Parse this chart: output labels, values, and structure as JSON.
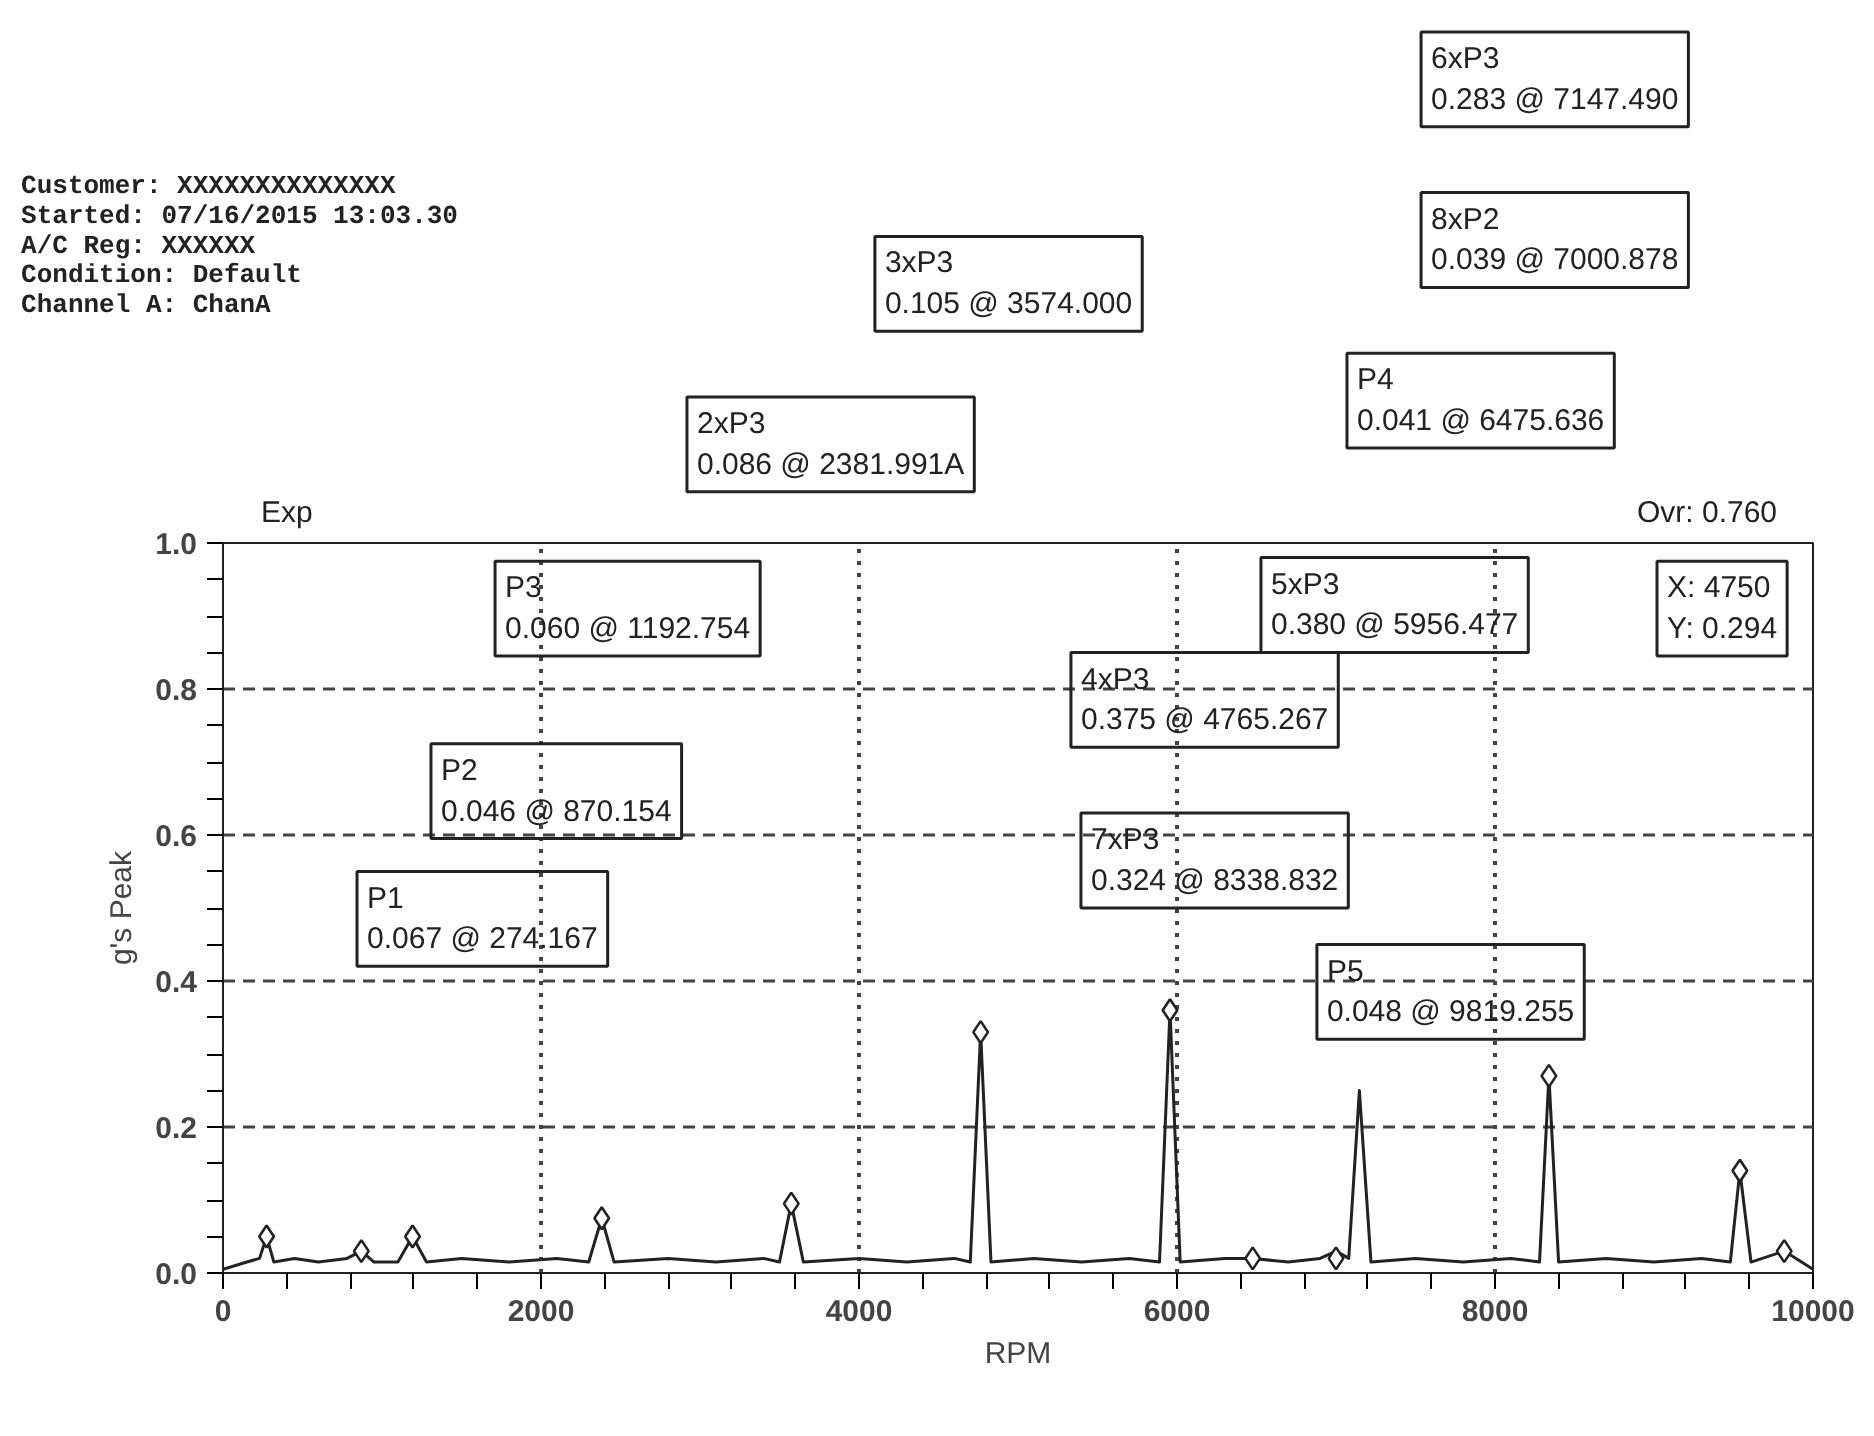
{
  "chart_data": {
    "type": "line",
    "xlabel": "RPM",
    "ylabel": "g's Peak",
    "annotations": [
      "Customer: XXXXXXXXXXXXXX",
      "Started: 07/16/2015 13:03.30",
      "A/C Reg: XXXXXX",
      "Condition: Default",
      "Channel A: ChanA",
      "Exp",
      "P1\n0.067 @ 274.167",
      "P2\n0.046 @ 870.154",
      "P3\n0.060 @ 1192.754",
      "2xP3\n0.086 @ 2381.991A",
      "3xP3\n0.105 @ 3574.000",
      "4xP3\n0.375 @ 4765.267",
      "7xP3\n0.324 @ 8338.832",
      "5xP3\n0.380 @ 5956.477",
      "P4\n0.041 @ 6475.636",
      "8xP2\n0.039 @ 7000.878",
      "6xP3\n0.283 @ 7147.490",
      "P5\n0.048 @ 9819.255",
      "Ovr: 0.760",
      "X: 4750\nY: 0.294"
    ],
    "xlim": [
      0,
      10000
    ],
    "ylim": [
      0,
      1.0
    ],
    "xticks": [
      0,
      {
        "value": 400,
        "label": null
      },
      {
        "value": 800,
        "label": null
      },
      {
        "value": 1200,
        "label": null
      },
      {
        "value": 1600,
        "label": null
      },
      2000,
      {
        "value": 2400,
        "label": null
      },
      {
        "value": 2800,
        "label": null
      },
      {
        "value": 3200,
        "label": null
      },
      {
        "value": 3600,
        "label": null
      },
      4000,
      {
        "value": 4400,
        "label": null
      },
      {
        "value": 4800,
        "label": null
      },
      {
        "value": 5200,
        "label": null
      },
      {
        "value": 5600,
        "label": null
      },
      6000,
      {
        "value": 6400,
        "label": null
      },
      {
        "value": 6800,
        "label": null
      },
      {
        "value": 7200,
        "label": null
      },
      {
        "value": 7600,
        "label": null
      },
      8000,
      {
        "value": 8400,
        "label": null
      },
      {
        "value": 8800,
        "label": null
      },
      {
        "value": 9200,
        "label": null
      },
      {
        "value": 9600,
        "label": null
      },
      10000
    ],
    "yticks": [
      {
        "value": 0,
        "label": "0.0"
      },
      {
        "value": 0.05,
        "label": null
      },
      {
        "value": 0.1,
        "label": null
      },
      {
        "value": 0.15,
        "label": null
      },
      {
        "value": 0.2,
        "label": "0.2"
      },
      {
        "value": 0.25,
        "label": null
      },
      {
        "value": 0.3,
        "label": null
      },
      {
        "value": 0.35,
        "label": null
      },
      {
        "value": 0.4,
        "label": "0.4"
      },
      {
        "value": 0.45,
        "label": null
      },
      {
        "value": 0.5,
        "label": null
      },
      {
        "value": 0.55,
        "label": null
      },
      {
        "value": 0.6,
        "label": "0.6"
      },
      {
        "value": 0.65,
        "label": null
      },
      {
        "value": 0.7,
        "label": null
      },
      {
        "value": 0.75,
        "label": null
      },
      {
        "value": 0.8,
        "label": "0.8"
      },
      {
        "value": 0.85,
        "label": null
      },
      {
        "value": 0.9,
        "label": null
      },
      {
        "value": 0.95,
        "label": null
      },
      {
        "value": 1.0,
        "label": "1.0"
      }
    ],
    "grid": true,
    "series": [
      {
        "color": "#222222",
        "marker": "none",
        "x": [
          0,
          150,
          230,
          274,
          320,
          450,
          600,
          780,
          870,
          950,
          1100,
          1192,
          1280,
          1500,
          1800,
          2100,
          2300,
          2382,
          2460,
          2800,
          3100,
          3400,
          3500,
          3574,
          3650,
          4000,
          4300,
          4600,
          4700,
          4765,
          4830,
          5100,
          5400,
          5700,
          5890,
          5956,
          6020,
          6300,
          6476,
          6700,
          6900,
          7000,
          7080,
          7147,
          7220,
          7500,
          7800,
          8100,
          8280,
          8339,
          8400,
          8700,
          9000,
          9300,
          9480,
          9540,
          9610,
          9819,
          10000
        ],
        "values": [
          0.005,
          0.015,
          0.02,
          0.05,
          0.015,
          0.02,
          0.015,
          0.02,
          0.03,
          0.015,
          0.015,
          0.05,
          0.015,
          0.02,
          0.015,
          0.02,
          0.015,
          0.075,
          0.015,
          0.02,
          0.015,
          0.02,
          0.015,
          0.095,
          0.015,
          0.02,
          0.015,
          0.02,
          0.015,
          0.33,
          0.015,
          0.02,
          0.015,
          0.02,
          0.015,
          0.36,
          0.015,
          0.02,
          0.02,
          0.015,
          0.02,
          0.03,
          0.02,
          0.25,
          0.015,
          0.02,
          0.015,
          0.02,
          0.015,
          0.27,
          0.015,
          0.02,
          0.015,
          0.02,
          0.015,
          0.14,
          0.015,
          0.03,
          0.005
        ]
      },
      {
        "type": "scatter",
        "color": "#222222",
        "marker": "diamond",
        "x": [
          274,
          870,
          1192,
          2382,
          3574,
          4765,
          5956,
          6476,
          7000,
          8339,
          9540,
          9819
        ],
        "values": [
          0.05,
          0.03,
          0.05,
          0.075,
          0.095,
          0.33,
          0.36,
          0.02,
          0.02,
          0.27,
          0.14,
          0.03
        ]
      }
    ]
  }
}
